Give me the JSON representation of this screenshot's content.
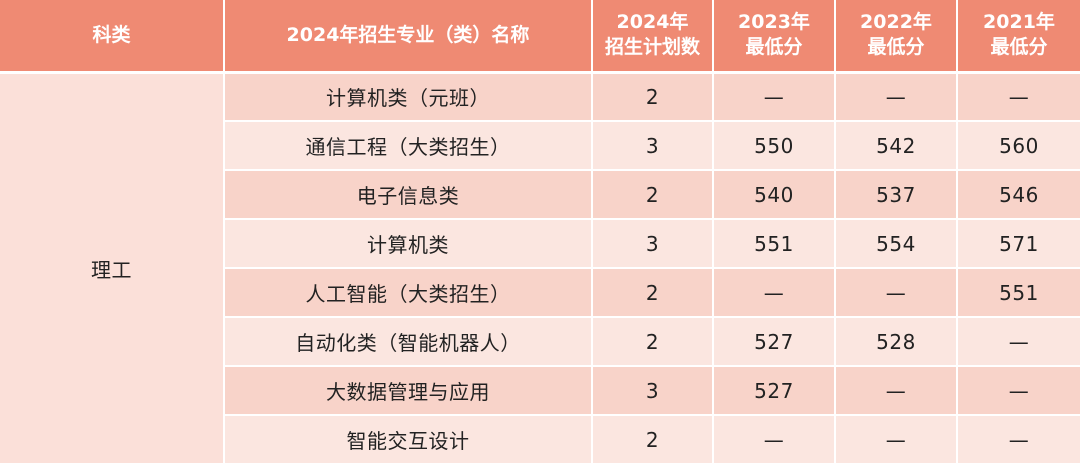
{
  "table": {
    "headers": {
      "category": "科类",
      "major": "2024年招生专业（类）名称",
      "plan_2024": [
        "2024年",
        "招生计划数"
      ],
      "score_2023": [
        "2023年",
        "最低分"
      ],
      "score_2022": [
        "2022年",
        "最低分"
      ],
      "score_2021": [
        "2021年",
        "最低分"
      ]
    },
    "category": "理工",
    "rows": [
      {
        "major": "计算机类（元班）",
        "plan": "2",
        "s2023": "—",
        "s2022": "—",
        "s2021": "—"
      },
      {
        "major": "通信工程（大类招生）",
        "plan": "3",
        "s2023": "550",
        "s2022": "542",
        "s2021": "560"
      },
      {
        "major": "电子信息类",
        "plan": "2",
        "s2023": "540",
        "s2022": "537",
        "s2021": "546"
      },
      {
        "major": "计算机类",
        "plan": "3",
        "s2023": "551",
        "s2022": "554",
        "s2021": "571"
      },
      {
        "major": "人工智能（大类招生）",
        "plan": "2",
        "s2023": "—",
        "s2022": "—",
        "s2021": "551"
      },
      {
        "major": "自动化类（智能机器人）",
        "plan": "2",
        "s2023": "527",
        "s2022": "528",
        "s2021": "—"
      },
      {
        "major": "大数据管理与应用",
        "plan": "3",
        "s2023": "527",
        "s2022": "—",
        "s2021": "—"
      },
      {
        "major": "智能交互设计",
        "plan": "2",
        "s2023": "—",
        "s2022": "—",
        "s2021": "—"
      }
    ],
    "colors": {
      "header_bg": "#ef8a73",
      "row_dark": "#f8d3c9",
      "row_light": "#fbe6e0",
      "category_bg": "#fbe0d9"
    }
  }
}
